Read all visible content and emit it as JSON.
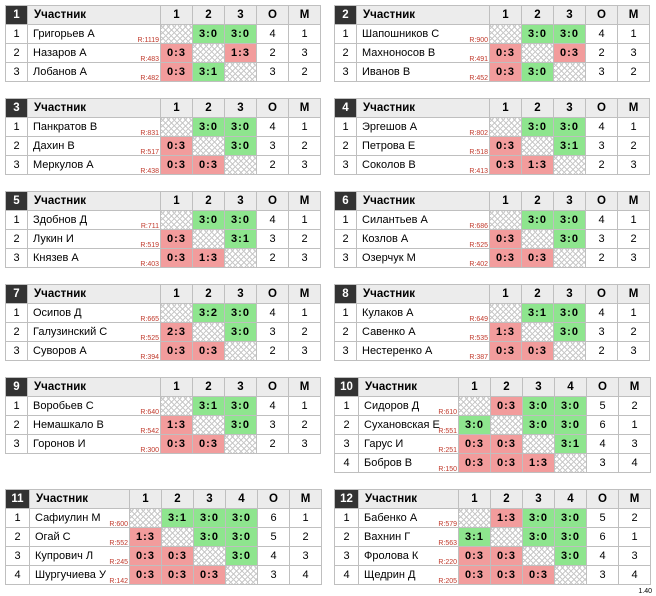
{
  "header_label": "Участник",
  "version": "1.40",
  "groups": [
    {
      "num": "1",
      "cols": [
        "1",
        "2",
        "3",
        "О",
        "М"
      ],
      "rows": [
        {
          "n": "1",
          "name": "Григорьев А",
          "rating": "R:1119",
          "cells": [
            "x",
            "3:0",
            "3:0"
          ],
          "o": "4",
          "m": "1"
        },
        {
          "n": "2",
          "name": "Назаров А",
          "rating": "R:483",
          "cells": [
            "0:3",
            "x",
            "1:3"
          ],
          "o": "2",
          "m": "3"
        },
        {
          "n": "3",
          "name": "Лобанов А",
          "rating": "R:482",
          "cells": [
            "0:3",
            "3:1",
            "x"
          ],
          "o": "3",
          "m": "2"
        }
      ]
    },
    {
      "num": "2",
      "cols": [
        "1",
        "2",
        "3",
        "О",
        "М"
      ],
      "rows": [
        {
          "n": "1",
          "name": "Шапошников С",
          "rating": "R:900",
          "cells": [
            "x",
            "3:0",
            "3:0"
          ],
          "o": "4",
          "m": "1"
        },
        {
          "n": "2",
          "name": "Махноносов В",
          "rating": "R:491",
          "cells": [
            "0:3",
            "x",
            "0:3"
          ],
          "o": "2",
          "m": "3"
        },
        {
          "n": "3",
          "name": "Иванов В",
          "rating": "R:452",
          "cells": [
            "0:3",
            "3:0",
            "x"
          ],
          "o": "3",
          "m": "2"
        }
      ]
    },
    {
      "num": "3",
      "cols": [
        "1",
        "2",
        "3",
        "О",
        "М"
      ],
      "rows": [
        {
          "n": "1",
          "name": "Панкратов В",
          "rating": "R:831",
          "cells": [
            "x",
            "3:0",
            "3:0"
          ],
          "o": "4",
          "m": "1"
        },
        {
          "n": "2",
          "name": "Дахин В",
          "rating": "R:517",
          "cells": [
            "0:3",
            "x",
            "3:0"
          ],
          "o": "3",
          "m": "2"
        },
        {
          "n": "3",
          "name": "Меркулов А",
          "rating": "R:438",
          "cells": [
            "0:3",
            "0:3",
            "x"
          ],
          "o": "2",
          "m": "3"
        }
      ]
    },
    {
      "num": "4",
      "cols": [
        "1",
        "2",
        "3",
        "О",
        "М"
      ],
      "rows": [
        {
          "n": "1",
          "name": "Эргешов А",
          "rating": "R:802",
          "cells": [
            "x",
            "3:0",
            "3:0"
          ],
          "o": "4",
          "m": "1"
        },
        {
          "n": "2",
          "name": "Петрова Е",
          "rating": "R:518",
          "cells": [
            "0:3",
            "x",
            "3:1"
          ],
          "o": "3",
          "m": "2"
        },
        {
          "n": "3",
          "name": "Соколов В",
          "rating": "R:413",
          "cells": [
            "0:3",
            "1:3",
            "x"
          ],
          "o": "2",
          "m": "3"
        }
      ]
    },
    {
      "num": "5",
      "cols": [
        "1",
        "2",
        "3",
        "О",
        "М"
      ],
      "rows": [
        {
          "n": "1",
          "name": "Здобнов Д",
          "rating": "R:711",
          "cells": [
            "x",
            "3:0",
            "3:0"
          ],
          "o": "4",
          "m": "1"
        },
        {
          "n": "2",
          "name": "Лукин И",
          "rating": "R:519",
          "cells": [
            "0:3",
            "x",
            "3:1"
          ],
          "o": "3",
          "m": "2"
        },
        {
          "n": "3",
          "name": "Князев А",
          "rating": "R:403",
          "cells": [
            "0:3",
            "1:3",
            "x"
          ],
          "o": "2",
          "m": "3"
        }
      ]
    },
    {
      "num": "6",
      "cols": [
        "1",
        "2",
        "3",
        "О",
        "М"
      ],
      "rows": [
        {
          "n": "1",
          "name": "Силантьев А",
          "rating": "R:686",
          "cells": [
            "x",
            "3:0",
            "3:0"
          ],
          "o": "4",
          "m": "1"
        },
        {
          "n": "2",
          "name": "Козлов А",
          "rating": "R:525",
          "cells": [
            "0:3",
            "x",
            "3:0"
          ],
          "o": "3",
          "m": "2"
        },
        {
          "n": "3",
          "name": "Озерчук М",
          "rating": "R:402",
          "cells": [
            "0:3",
            "0:3",
            "x"
          ],
          "o": "2",
          "m": "3"
        }
      ]
    },
    {
      "num": "7",
      "cols": [
        "1",
        "2",
        "3",
        "О",
        "М"
      ],
      "rows": [
        {
          "n": "1",
          "name": "Осипов Д",
          "rating": "R:665",
          "cells": [
            "x",
            "3:2",
            "3:0"
          ],
          "o": "4",
          "m": "1"
        },
        {
          "n": "2",
          "name": "Галузинский С",
          "rating": "R:525",
          "cells": [
            "2:3",
            "x",
            "3:0"
          ],
          "o": "3",
          "m": "2"
        },
        {
          "n": "3",
          "name": "Суворов А",
          "rating": "R:394",
          "cells": [
            "0:3",
            "0:3",
            "x"
          ],
          "o": "2",
          "m": "3"
        }
      ]
    },
    {
      "num": "8",
      "cols": [
        "1",
        "2",
        "3",
        "О",
        "М"
      ],
      "rows": [
        {
          "n": "1",
          "name": "Кулаков А",
          "rating": "R:649",
          "cells": [
            "x",
            "3:1",
            "3:0"
          ],
          "o": "4",
          "m": "1"
        },
        {
          "n": "2",
          "name": "Савенко А",
          "rating": "R:535",
          "cells": [
            "1:3",
            "x",
            "3:0"
          ],
          "o": "3",
          "m": "2"
        },
        {
          "n": "3",
          "name": "Нестеренко А",
          "rating": "R:387",
          "cells": [
            "0:3",
            "0:3",
            "x"
          ],
          "o": "2",
          "m": "3"
        }
      ]
    },
    {
      "num": "9",
      "cols": [
        "1",
        "2",
        "3",
        "О",
        "М"
      ],
      "rows": [
        {
          "n": "1",
          "name": "Воробьев С",
          "rating": "R:640",
          "cells": [
            "x",
            "3:1",
            "3:0"
          ],
          "o": "4",
          "m": "1"
        },
        {
          "n": "2",
          "name": "Немашкало В",
          "rating": "R:542",
          "cells": [
            "1:3",
            "x",
            "3:0"
          ],
          "o": "3",
          "m": "2"
        },
        {
          "n": "3",
          "name": "Горонов И",
          "rating": "R:300",
          "cells": [
            "0:3",
            "0:3",
            "x"
          ],
          "o": "2",
          "m": "3"
        }
      ]
    },
    {
      "num": "10",
      "cols": [
        "1",
        "2",
        "3",
        "4",
        "О",
        "М"
      ],
      "rows": [
        {
          "n": "1",
          "name": "Сидоров Д",
          "rating": "R:610",
          "cells": [
            "x",
            "0:3",
            "3:0",
            "3:0"
          ],
          "o": "5",
          "m": "2"
        },
        {
          "n": "2",
          "name": "Сухановская Е",
          "rating": "R:551",
          "cells": [
            "3:0",
            "x",
            "3:0",
            "3:0"
          ],
          "o": "6",
          "m": "1"
        },
        {
          "n": "3",
          "name": "Гарус И",
          "rating": "R:251",
          "cells": [
            "0:3",
            "0:3",
            "x",
            "3:1"
          ],
          "o": "4",
          "m": "3"
        },
        {
          "n": "4",
          "name": "Бобров В",
          "rating": "R:150",
          "cells": [
            "0:3",
            "0:3",
            "1:3",
            "x"
          ],
          "o": "3",
          "m": "4"
        }
      ]
    },
    {
      "num": "11",
      "cols": [
        "1",
        "2",
        "3",
        "4",
        "О",
        "М"
      ],
      "rows": [
        {
          "n": "1",
          "name": "Сафиулин М",
          "rating": "R:600",
          "cells": [
            "x",
            "3:1",
            "3:0",
            "3:0"
          ],
          "o": "6",
          "m": "1"
        },
        {
          "n": "2",
          "name": "Огай С",
          "rating": "R:552",
          "cells": [
            "1:3",
            "x",
            "3:0",
            "3:0"
          ],
          "o": "5",
          "m": "2"
        },
        {
          "n": "3",
          "name": "Купрович Л",
          "rating": "R:245",
          "cells": [
            "0:3",
            "0:3",
            "x",
            "3:0"
          ],
          "o": "4",
          "m": "3"
        },
        {
          "n": "4",
          "name": "Шургучиева У",
          "rating": "R:142",
          "cells": [
            "0:3",
            "0:3",
            "0:3",
            "x"
          ],
          "o": "3",
          "m": "4"
        }
      ]
    },
    {
      "num": "12",
      "cols": [
        "1",
        "2",
        "3",
        "4",
        "О",
        "М"
      ],
      "rows": [
        {
          "n": "1",
          "name": "Бабенко А",
          "rating": "R:579",
          "cells": [
            "x",
            "1:3",
            "3:0",
            "3:0"
          ],
          "o": "5",
          "m": "2"
        },
        {
          "n": "2",
          "name": "Вахнин Г",
          "rating": "R:563",
          "cells": [
            "3:1",
            "x",
            "3:0",
            "3:0"
          ],
          "o": "6",
          "m": "1"
        },
        {
          "n": "3",
          "name": "Фролова К",
          "rating": "R:220",
          "cells": [
            "0:3",
            "0:3",
            "x",
            "3:0"
          ],
          "o": "4",
          "m": "3"
        },
        {
          "n": "4",
          "name": "Щедрин Д",
          "rating": "R:205",
          "cells": [
            "0:3",
            "0:3",
            "0:3",
            "x"
          ],
          "o": "3",
          "m": "4"
        }
      ]
    }
  ]
}
